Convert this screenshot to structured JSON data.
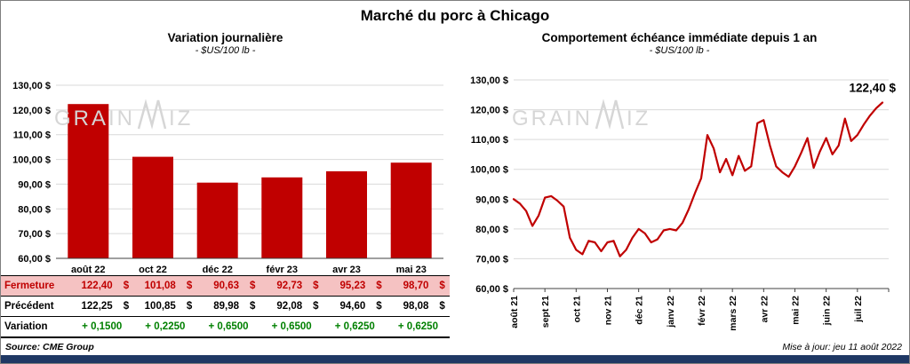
{
  "page": {
    "title": "Marché du porc à Chicago",
    "source": "Source: CME Group",
    "updated": "Mise à jour: jeu 11 août 2022",
    "watermark": {
      "left": "GRAIN",
      "right": "IZ"
    }
  },
  "colors": {
    "bar": "#C00000",
    "line": "#C00000",
    "grid": "#D9D9D9",
    "axis": "#404040",
    "fermeture_bg": "#F5C2C2",
    "fermeture_text": "#C00000",
    "variation_text": "#008000",
    "bottom_bar": "#1F3864"
  },
  "chart_data": [
    {
      "type": "bar",
      "title": "Variation journalière",
      "subtitle": "- $US/100 lb -",
      "categories": [
        "août 22",
        "oct 22",
        "déc 22",
        "févr 23",
        "avr 23",
        "mai 23"
      ],
      "values": [
        122.4,
        101.08,
        90.63,
        92.73,
        95.23,
        98.7
      ],
      "ylim": [
        60,
        130
      ],
      "y_tick_step": 10,
      "y_ticks": [
        "60,00 $",
        "70,00 $",
        "80,00 $",
        "90,00 $",
        "100,00 $",
        "110,00 $",
        "120,00 $",
        "130,00 $"
      ],
      "grid": true,
      "legend": "none"
    },
    {
      "type": "line",
      "title": "Comportement échéance immédiate depuis 1 an",
      "subtitle": "- $US/100 lb -",
      "x_tick_labels": [
        "août 21",
        "sept 21",
        "oct 21",
        "nov 21",
        "déc 21",
        "janv 22",
        "févr 22",
        "mars 22",
        "avr 22",
        "mai 22",
        "juin 22",
        "juil 22"
      ],
      "points_per_month": 5,
      "values": [
        90,
        88.5,
        86,
        81,
        84.5,
        90.5,
        91,
        89.5,
        87.5,
        77,
        73,
        71.5,
        76,
        75.5,
        72.5,
        75.5,
        76,
        70.8,
        73,
        77,
        80,
        78.5,
        75.5,
        76.5,
        79.5,
        80,
        79.5,
        82,
        86.5,
        92,
        97,
        111.5,
        107,
        99,
        103.5,
        98,
        104.5,
        99.5,
        101,
        115.5,
        116.5,
        108,
        101,
        99,
        97.5,
        101,
        105.5,
        110.5,
        100.5,
        106,
        110.5,
        105,
        108,
        117,
        109.5,
        111.5,
        115,
        118,
        120.5,
        122.4
      ],
      "ylim": [
        60,
        130
      ],
      "y_tick_step": 10,
      "y_ticks": [
        "60,00 $",
        "70,00 $",
        "80,00 $",
        "90,00 $",
        "100,00 $",
        "110,00 $",
        "120,00 $",
        "130,00 $"
      ],
      "annotation": "122,40 $",
      "grid": true,
      "legend": "none"
    }
  ],
  "table": {
    "currency": "$",
    "rows": [
      {
        "key": "fermeture",
        "label": "Fermeture",
        "values": [
          "122,40",
          "101,08",
          "90,63",
          "92,73",
          "95,23",
          "98,70"
        ],
        "show_currency": true
      },
      {
        "key": "precedent",
        "label": "Précédent",
        "values": [
          "122,25",
          "100,85",
          "89,98",
          "92,08",
          "94,60",
          "98,08"
        ],
        "show_currency": true
      },
      {
        "key": "variation",
        "label": "Variation",
        "values": [
          "+ 0,1500",
          "+ 0,2250",
          "+ 0,6500",
          "+ 0,6500",
          "+ 0,6250",
          "+ 0,6250"
        ],
        "show_currency": false
      }
    ]
  }
}
